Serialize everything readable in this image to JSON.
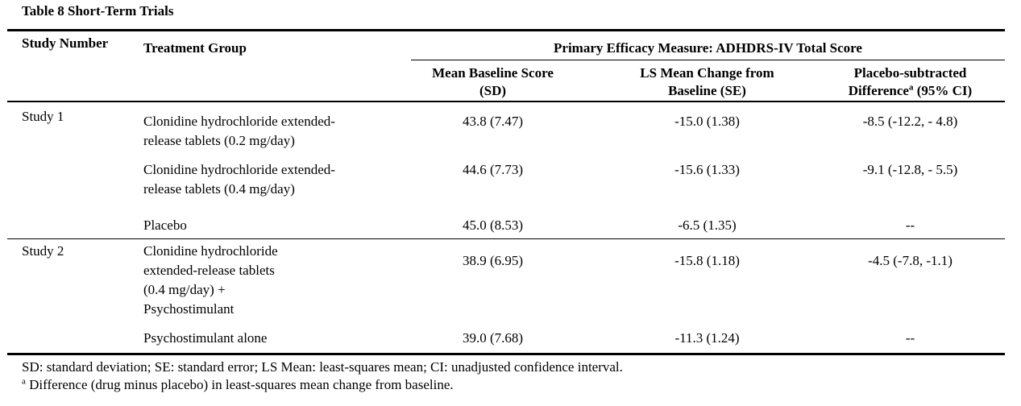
{
  "table_title": "Table 8 Short-Term Trials",
  "headers": {
    "study_number": "Study Number",
    "treatment_group": "Treatment Group",
    "primary_measure": "Primary Efficacy Measure: ADHDRS-IV Total Score",
    "mean_baseline_line1": "Mean Baseline Score",
    "mean_baseline_line2": "(SD)",
    "ls_change_line1": "LS Mean Change from",
    "ls_change_line2": "Baseline (SE)",
    "placebo_diff_line1": "Placebo-subtracted",
    "placebo_diff_line2_pre": "Difference",
    "placebo_diff_sup": "a",
    "placebo_diff_line2_post": " (95% CI)"
  },
  "rows": [
    {
      "study": "Study 1",
      "treatment_line1": "Clonidine hydrochloride extended-",
      "treatment_line2": "release tablets (0.2 mg/day)",
      "baseline": "43.8 (7.47)",
      "ls_change": "-15.0 (1.38)",
      "placebo_diff": "-8.5 (-12.2, - 4.8)"
    },
    {
      "study": "",
      "treatment_line1": "Clonidine hydrochloride extended-",
      "treatment_line2": "release tablets (0.4 mg/day)",
      "baseline": "44.6 (7.73)",
      "ls_change": "-15.6 (1.33)",
      "placebo_diff": "-9.1 (-12.8, - 5.5)"
    },
    {
      "study": "",
      "treatment_line1": "Placebo",
      "treatment_line2": "",
      "baseline": "45.0 (8.53)",
      "ls_change": "-6.5 (1.35)",
      "placebo_diff": "--"
    },
    {
      "study": "Study 2",
      "treatment_line1": "Clonidine hydrochloride",
      "treatment_line2": "extended-release tablets",
      "treatment_line3": "(0.4 mg/day) +",
      "treatment_line4": "Psychostimulant",
      "baseline": "38.9 (6.95)",
      "ls_change": "-15.8 (1.18)",
      "placebo_diff": "-4.5 (-7.8, -1.1)"
    },
    {
      "study": "",
      "treatment_line1": "Psychostimulant alone",
      "treatment_line2": "",
      "baseline": "39.0 (7.68)",
      "ls_change": "-11.3 (1.24)",
      "placebo_diff": "--"
    }
  ],
  "footnotes": {
    "abbrev": "SD: standard deviation; SE: standard error; LS Mean: least-squares mean; CI: unadjusted confidence interval.",
    "note_mark": "a",
    "note_text": " Difference (drug minus placebo) in least-squares mean change from baseline."
  }
}
